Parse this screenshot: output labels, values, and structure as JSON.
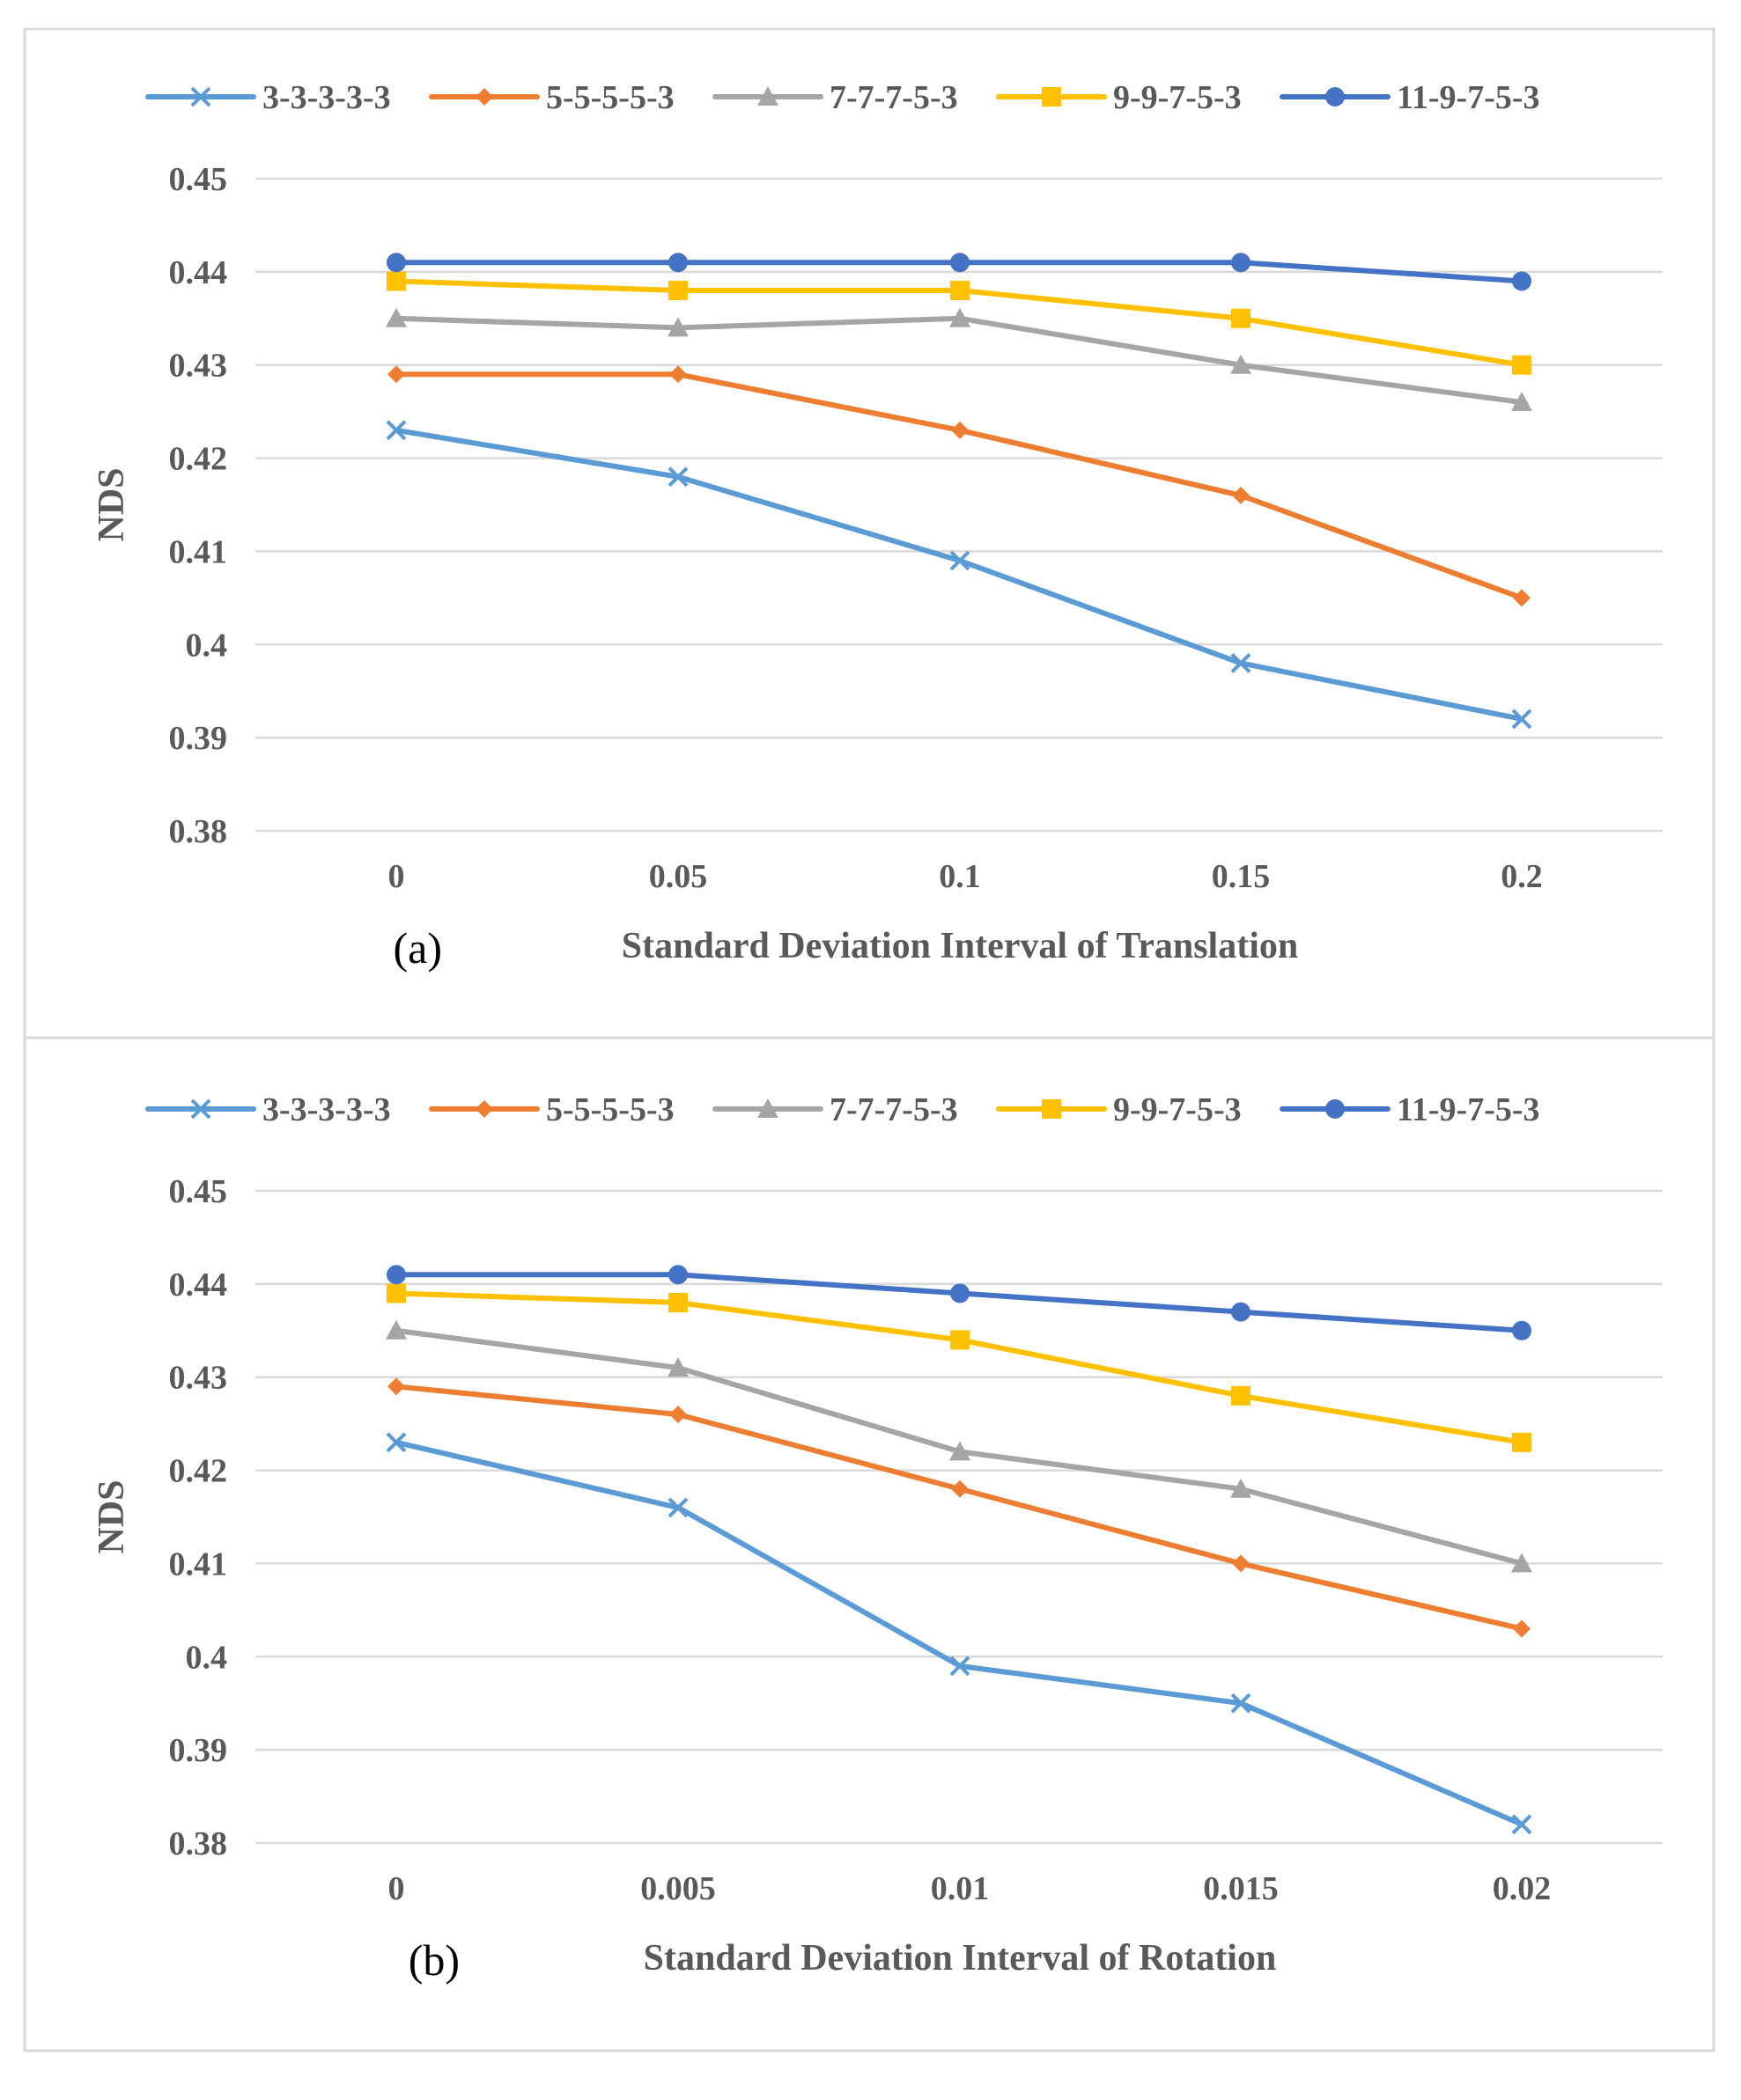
{
  "colors": {
    "grid": "#d9d9d9",
    "border": "#d9d9d9",
    "text": "#595959"
  },
  "chart_data": [
    {
      "type": "line",
      "panel_label": "(a)",
      "title": "",
      "xlabel": "Standard Deviation Interval of Translation",
      "ylabel": "NDS",
      "categories": [
        "0",
        "0.05",
        "0.1",
        "0.15",
        "0.2"
      ],
      "ylim": [
        0.38,
        0.45
      ],
      "yticks": [
        "0.38",
        "0.39",
        "0.4",
        "0.41",
        "0.42",
        "0.43",
        "0.44",
        "0.45"
      ],
      "grid": true,
      "legend_position": "top",
      "series": [
        {
          "name": "3-3-3-3-3",
          "color": "#5b9bd5",
          "marker": "x",
          "values": [
            0.423,
            0.418,
            0.409,
            0.398,
            0.392
          ]
        },
        {
          "name": "5-5-5-5-3",
          "color": "#ed7d31",
          "marker": "diamond",
          "values": [
            0.429,
            0.429,
            0.423,
            0.416,
            0.405
          ]
        },
        {
          "name": "7-7-7-5-3",
          "color": "#a5a5a5",
          "marker": "triangle",
          "values": [
            0.435,
            0.434,
            0.435,
            0.43,
            0.426
          ]
        },
        {
          "name": "9-9-7-5-3",
          "color": "#ffc000",
          "marker": "square",
          "values": [
            0.439,
            0.438,
            0.438,
            0.435,
            0.43
          ]
        },
        {
          "name": "11-9-7-5-3",
          "color": "#4472c4",
          "marker": "circle",
          "values": [
            0.441,
            0.441,
            0.441,
            0.441,
            0.439
          ]
        }
      ]
    },
    {
      "type": "line",
      "panel_label": "(b)",
      "title": "",
      "xlabel": "Standard Deviation Interval of Rotation",
      "ylabel": "NDS",
      "categories": [
        "0",
        "0.005",
        "0.01",
        "0.015",
        "0.02"
      ],
      "ylim": [
        0.38,
        0.45
      ],
      "yticks": [
        "0.38",
        "0.39",
        "0.4",
        "0.41",
        "0.42",
        "0.43",
        "0.44",
        "0.45"
      ],
      "grid": true,
      "legend_position": "top",
      "series": [
        {
          "name": "3-3-3-3-3",
          "color": "#5b9bd5",
          "marker": "x",
          "values": [
            0.423,
            0.416,
            0.399,
            0.395,
            0.382
          ]
        },
        {
          "name": "5-5-5-5-3",
          "color": "#ed7d31",
          "marker": "diamond",
          "values": [
            0.429,
            0.426,
            0.418,
            0.41,
            0.403
          ]
        },
        {
          "name": "7-7-7-5-3",
          "color": "#a5a5a5",
          "marker": "triangle",
          "values": [
            0.435,
            0.431,
            0.422,
            0.418,
            0.41
          ]
        },
        {
          "name": "9-9-7-5-3",
          "color": "#ffc000",
          "marker": "square",
          "values": [
            0.439,
            0.438,
            0.434,
            0.428,
            0.423
          ]
        },
        {
          "name": "11-9-7-5-3",
          "color": "#4472c4",
          "marker": "circle",
          "values": [
            0.441,
            0.441,
            0.439,
            0.437,
            0.435
          ]
        }
      ]
    }
  ]
}
